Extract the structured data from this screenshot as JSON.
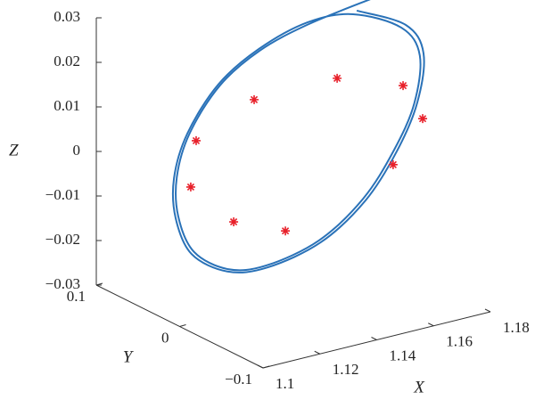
{
  "chart_data": {
    "type": "line3d",
    "xlabel": "X",
    "ylabel": "Y",
    "zlabel": "Z",
    "xlim": [
      1.1,
      1.18
    ],
    "ylim": [
      -0.1,
      0.1
    ],
    "zlim": [
      -0.03,
      0.03
    ],
    "xticks": [
      1.1,
      1.12,
      1.14,
      1.16,
      1.18
    ],
    "yticks": [
      {
        "value": -0.1,
        "label": "−0.1"
      },
      0,
      0.1
    ],
    "zticks": [
      {
        "value": -0.03,
        "label": "−0.03"
      },
      {
        "value": -0.02,
        "label": "−0.02"
      },
      {
        "value": -0.01,
        "label": "−0.01"
      },
      0,
      0.01,
      0.02,
      0.03
    ],
    "trajectory": {
      "color": "#2a72b8",
      "x": [
        1.1623,
        1.1795,
        1.1858,
        1.1836,
        1.1764,
        1.1654,
        1.1497,
        1.1309,
        1.1168,
        1.1042,
        1.0986,
        1.098,
        1.1027,
        1.1136,
        1.1278,
        1.145,
        1.161,
        1.178,
        1.1845,
        1.1825,
        1.1752,
        1.1645,
        1.149,
        1.1305,
        1.117,
        1.105,
        1.0995,
        1.099,
        1.1035,
        1.1142,
        1.1282,
        1.1452,
        1.168
      ],
      "y": [
        0,
        0,
        0,
        0,
        0,
        0,
        0,
        0,
        0,
        0,
        0,
        0,
        0,
        0,
        0,
        0,
        0,
        0,
        0,
        0,
        0,
        0,
        0,
        0,
        0,
        0,
        0,
        0,
        0,
        0,
        0,
        0,
        0
      ],
      "z": [
        0.0311,
        0.0252,
        0.0178,
        0.0071,
        -0.0027,
        -0.012,
        -0.0189,
        -0.0216,
        -0.0203,
        -0.0144,
        -0.0055,
        0.0036,
        0.0129,
        0.0222,
        0.0279,
        0.0312,
        0.0305,
        0.0248,
        0.0175,
        0.007,
        -0.0025,
        -0.0115,
        -0.0184,
        -0.0211,
        -0.0198,
        -0.014,
        -0.0052,
        0.0037,
        0.0128,
        0.0219,
        0.0275,
        0.0307,
        0.033
      ]
    },
    "points": {
      "color": "#e8202a",
      "x": [
        1.1554,
        1.1786,
        1.1855,
        1.1751,
        1.1262,
        1.1058,
        1.1039,
        1.119,
        1.1372
      ],
      "y": [
        0,
        0,
        0,
        0,
        0,
        0,
        0,
        0,
        0
      ],
      "z": [
        0.017,
        0.0117,
        0.0032,
        -0.0055,
        0.0168,
        0.0108,
        0.0007,
        -0.0095,
        -0.0144
      ]
    }
  }
}
